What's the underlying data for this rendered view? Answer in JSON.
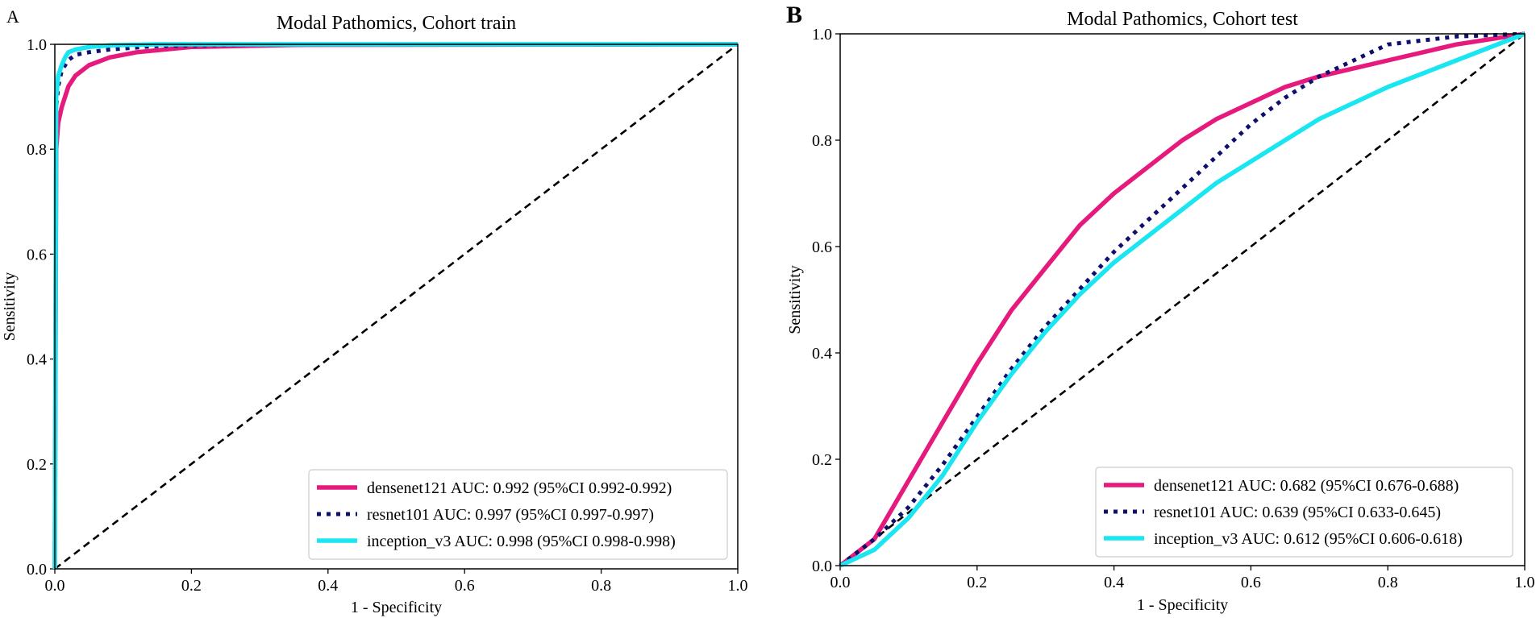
{
  "panels": [
    {
      "letter": "A"
    },
    {
      "letter": "B"
    }
  ],
  "chart_data": [
    {
      "type": "line",
      "title": "Modal Pathomics, Cohort train",
      "xlabel": "1 - Specificity",
      "ylabel": "Sensitivity",
      "xlim": [
        0,
        1
      ],
      "ylim": [
        0,
        1.0
      ],
      "xticks": [
        "0.0",
        "0.2",
        "0.4",
        "0.6",
        "0.8",
        "1.0"
      ],
      "yticks": [
        "0.0",
        "0.2",
        "0.4",
        "0.6",
        "0.8",
        "1.0"
      ],
      "legend_position": "bottom-right",
      "reference_line": {
        "style": "dashed",
        "color": "#000000",
        "points": [
          [
            0,
            0
          ],
          [
            1,
            1
          ]
        ]
      },
      "series": [
        {
          "name": "densenet121",
          "label": "densenet121 AUC: 0.992 (95%CI 0.992-0.992)",
          "color": "#e6197c",
          "style": "solid",
          "x": [
            0,
            0.002,
            0.005,
            0.01,
            0.015,
            0.02,
            0.03,
            0.05,
            0.08,
            0.12,
            0.2,
            0.35,
            1.0
          ],
          "y": [
            0,
            0.8,
            0.85,
            0.88,
            0.9,
            0.92,
            0.94,
            0.96,
            0.975,
            0.985,
            0.995,
            0.999,
            1.0
          ]
        },
        {
          "name": "resnet101",
          "label": "resnet101 AUC: 0.997 (95%CI 0.997-0.997)",
          "color": "#0f0f6e",
          "style": "dotted",
          "x": [
            0,
            0.002,
            0.005,
            0.01,
            0.02,
            0.03,
            0.05,
            0.08,
            0.15,
            0.3,
            1.0
          ],
          "y": [
            0,
            0.88,
            0.92,
            0.95,
            0.97,
            0.98,
            0.985,
            0.99,
            0.997,
            1.0,
            1.0
          ]
        },
        {
          "name": "inception_v3",
          "label": "inception_v3 AUC: 0.998 (95%CI 0.998-0.998)",
          "color": "#19e6f0",
          "style": "solid",
          "x": [
            0,
            0.002,
            0.005,
            0.01,
            0.015,
            0.02,
            0.03,
            0.05,
            0.08,
            0.15,
            1.0
          ],
          "y": [
            0,
            0.9,
            0.94,
            0.96,
            0.975,
            0.985,
            0.99,
            0.995,
            0.998,
            1.0,
            1.0
          ]
        }
      ]
    },
    {
      "type": "line",
      "title": "Modal Pathomics, Cohort test",
      "xlabel": "1 - Specificity",
      "ylabel": "Sensitivity",
      "xlim": [
        0,
        1
      ],
      "ylim": [
        0,
        1.0
      ],
      "xticks": [
        "0.0",
        "0.2",
        "0.4",
        "0.6",
        "0.8",
        "1.0"
      ],
      "yticks": [
        "0.0",
        "0.2",
        "0.4",
        "0.6",
        "0.8",
        "1.0"
      ],
      "legend_position": "bottom-right",
      "reference_line": {
        "style": "dashed",
        "color": "#000000",
        "points": [
          [
            0,
            0
          ],
          [
            1,
            1
          ]
        ]
      },
      "series": [
        {
          "name": "densenet121",
          "label": "densenet121 AUC: 0.682 (95%CI 0.676-0.688)",
          "color": "#e6197c",
          "style": "solid",
          "x": [
            0,
            0.05,
            0.1,
            0.15,
            0.2,
            0.25,
            0.3,
            0.35,
            0.4,
            0.45,
            0.5,
            0.55,
            0.6,
            0.65,
            0.7,
            0.8,
            0.9,
            1.0
          ],
          "y": [
            0,
            0.05,
            0.16,
            0.27,
            0.38,
            0.48,
            0.56,
            0.64,
            0.7,
            0.75,
            0.8,
            0.84,
            0.87,
            0.9,
            0.92,
            0.95,
            0.98,
            1.0
          ]
        },
        {
          "name": "resnet101",
          "label": "resnet101 AUC: 0.639 (95%CI 0.633-0.645)",
          "color": "#0f0f6e",
          "style": "dotted",
          "x": [
            0,
            0.05,
            0.1,
            0.15,
            0.2,
            0.25,
            0.3,
            0.35,
            0.4,
            0.45,
            0.5,
            0.55,
            0.6,
            0.65,
            0.7,
            0.75,
            0.8,
            0.9,
            1.0
          ],
          "y": [
            0,
            0.05,
            0.11,
            0.19,
            0.28,
            0.37,
            0.45,
            0.52,
            0.59,
            0.65,
            0.71,
            0.77,
            0.83,
            0.88,
            0.92,
            0.95,
            0.98,
            0.995,
            1.0
          ]
        },
        {
          "name": "inception_v3",
          "label": "inception_v3 AUC: 0.612 (95%CI 0.606-0.618)",
          "color": "#19e6f0",
          "style": "solid",
          "x": [
            0,
            0.05,
            0.1,
            0.15,
            0.2,
            0.25,
            0.3,
            0.35,
            0.4,
            0.45,
            0.5,
            0.55,
            0.6,
            0.65,
            0.7,
            0.8,
            0.9,
            1.0
          ],
          "y": [
            0,
            0.03,
            0.09,
            0.17,
            0.27,
            0.36,
            0.44,
            0.51,
            0.57,
            0.62,
            0.67,
            0.72,
            0.76,
            0.8,
            0.84,
            0.9,
            0.95,
            1.0
          ]
        }
      ]
    }
  ]
}
